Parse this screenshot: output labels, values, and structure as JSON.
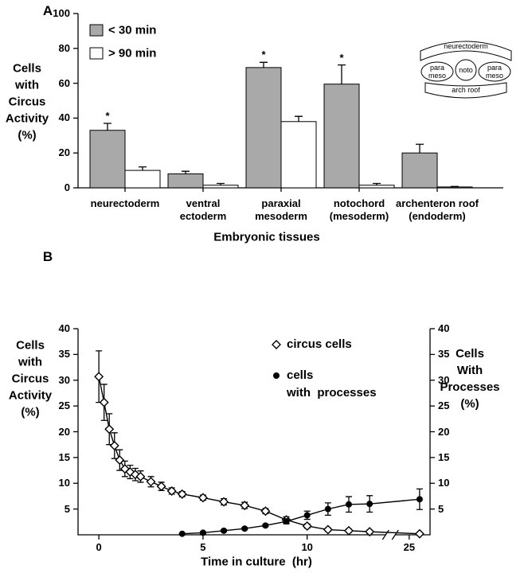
{
  "chart_data": [
    {
      "type": "bar",
      "panel": "A",
      "y_label": "Cells\nwith\nCircus\nActivity\n(%)",
      "x_label": "Embryonic tissues",
      "categories": [
        [
          "neurectoderm"
        ],
        [
          "ventral",
          "ectoderm"
        ],
        [
          "paraxial",
          "mesoderm"
        ],
        [
          "notochord",
          "(mesoderm)"
        ],
        [
          "archenteron roof",
          "(endoderm)"
        ]
      ],
      "significance": [
        "*",
        null,
        "*",
        "*",
        null
      ],
      "series": [
        {
          "name": "< 30 min",
          "color": "#a9a9a9",
          "values": [
            33,
            8,
            69,
            59.5,
            20
          ],
          "errors": [
            4,
            1.5,
            3,
            11,
            5
          ]
        },
        {
          "name": "> 90 min",
          "color": "#ffffff",
          "values": [
            10,
            1.5,
            38,
            1.5,
            0.5
          ],
          "errors": [
            2,
            1,
            3,
            1,
            0.3
          ]
        }
      ],
      "ylim": [
        0,
        100
      ],
      "yticks": [
        0,
        20,
        40,
        60,
        80,
        100
      ]
    },
    {
      "type": "line",
      "panel": "B",
      "y_label": "Cells\nwith\nCircus\nActivity\n(%)",
      "y2_label": "Cells\nWith\nProcesses\n(%)",
      "x_label": "Time in culture  (hr)",
      "series": [
        {
          "name": "circus cells",
          "marker": "diamond",
          "color": "#000000",
          "x": [
            0,
            0.25,
            0.5,
            0.75,
            1,
            1.25,
            1.5,
            1.75,
            2,
            2.5,
            3,
            3.5,
            4,
            5,
            6,
            7,
            8,
            9,
            10,
            11,
            12,
            13,
            25.5
          ],
          "values": [
            30.7,
            25.7,
            20.5,
            17.3,
            14.5,
            12.8,
            12.2,
            11.7,
            11.3,
            10.3,
            9.4,
            8.5,
            7.9,
            7.2,
            6.4,
            5.7,
            4.6,
            2.9,
            1.7,
            1.0,
            0.8,
            0.6,
            0.2
          ],
          "errors": [
            5,
            3.5,
            3,
            2.5,
            2,
            1.5,
            1.3,
            1.2,
            1.1,
            1,
            0.8,
            0.6,
            0.5,
            0.5,
            0.6,
            0.6,
            0.5,
            0.6,
            0.4,
            0.3,
            0.3,
            0.3,
            0.2
          ]
        },
        {
          "name": "cells\nwith  processes",
          "marker": "circle",
          "color": "#000000",
          "axis": "y2",
          "x": [
            4,
            5,
            6,
            7,
            8,
            9,
            10,
            11,
            12,
            13,
            25.5
          ],
          "values": [
            0.2,
            0.4,
            0.8,
            1.2,
            1.8,
            2.6,
            3.8,
            5.0,
            5.9,
            6.0,
            6.9
          ],
          "errors": [
            0.1,
            0.2,
            0.2,
            0.2,
            0.2,
            0.5,
            0.8,
            1.2,
            1.5,
            1.6,
            2
          ]
        }
      ],
      "xlim": [
        -1,
        26
      ],
      "xticks": [
        0,
        5,
        10,
        25
      ],
      "x_break": [
        14,
        24.1
      ],
      "ylim": [
        0,
        40
      ],
      "yticks": [
        5,
        10,
        15,
        20,
        25,
        30,
        35,
        40
      ],
      "y2lim": [
        0,
        40
      ],
      "y2ticks": [
        5,
        10,
        15,
        20,
        25,
        30,
        35,
        40
      ]
    }
  ],
  "inset": {
    "top": "neurectoderm",
    "left": "para\nmeso",
    "center": "noto",
    "right": "para\nmeso",
    "bottom": "arch roof"
  }
}
